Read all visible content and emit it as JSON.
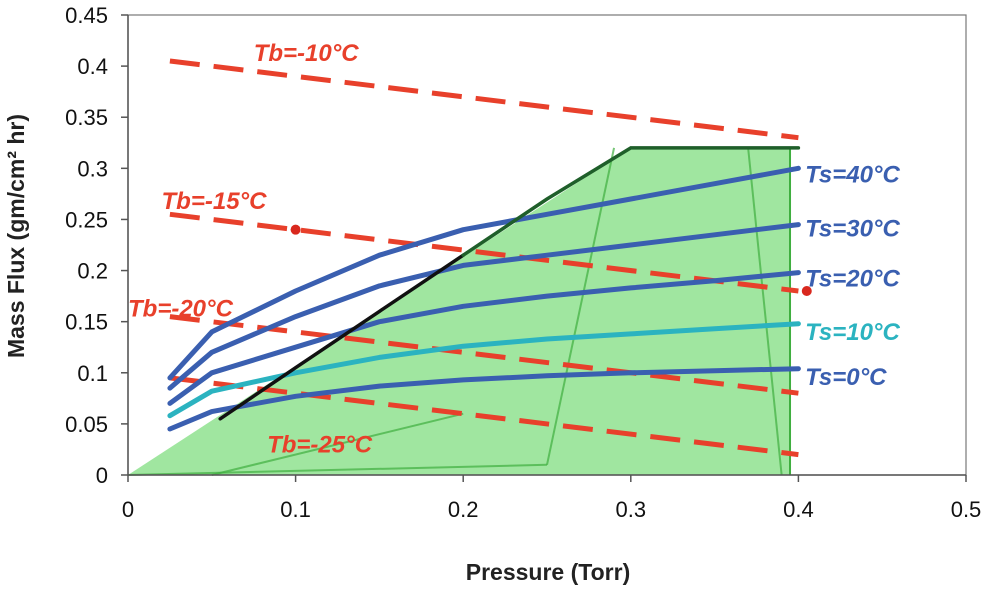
{
  "colors": {
    "ts": "#3a5fb0",
    "ts10": "#2bb3c0",
    "tb": "#e8402b",
    "region_fill": "#8fe28f",
    "region_edge": "#3fae3f",
    "boundary": "#111111",
    "plot_border": "#777777"
  },
  "chart_data": {
    "type": "line",
    "xlabel": "Pressure (Torr)",
    "ylabel": "Mass Flux (gm/cm² hr)",
    "xlim": [
      0,
      0.5
    ],
    "ylim": [
      0,
      0.45
    ],
    "xticks": [
      "0",
      "0.1",
      "0.2",
      "0.3",
      "0.4",
      "0.5"
    ],
    "yticks": [
      "0",
      "0.05",
      "0.1",
      "0.15",
      "0.2",
      "0.25",
      "0.3",
      "0.35",
      "0.4",
      "0.45"
    ],
    "grid": false,
    "shaded_region": {
      "vertices": [
        [
          0,
          0
        ],
        [
          0.3,
          0.32
        ],
        [
          0.395,
          0.32
        ],
        [
          0.395,
          0
        ],
        [
          0,
          0
        ]
      ]
    },
    "boundary_line": {
      "x": [
        0.055,
        0.1,
        0.15,
        0.2,
        0.25,
        0.3,
        0.4
      ],
      "y": [
        0.055,
        0.105,
        0.16,
        0.215,
        0.27,
        0.32,
        0.32
      ]
    },
    "ts_series": [
      {
        "label": "Ts=40°C",
        "x": [
          0.025,
          0.05,
          0.1,
          0.15,
          0.2,
          0.25,
          0.3,
          0.35,
          0.4
        ],
        "y": [
          0.095,
          0.14,
          0.18,
          0.215,
          0.24,
          0.255,
          0.27,
          0.285,
          0.3
        ]
      },
      {
        "label": "Ts=30°C",
        "x": [
          0.025,
          0.05,
          0.1,
          0.15,
          0.2,
          0.25,
          0.3,
          0.35,
          0.4
        ],
        "y": [
          0.085,
          0.12,
          0.155,
          0.185,
          0.205,
          0.215,
          0.225,
          0.235,
          0.245
        ]
      },
      {
        "label": "Ts=20°C",
        "x": [
          0.025,
          0.05,
          0.1,
          0.15,
          0.2,
          0.25,
          0.3,
          0.35,
          0.4
        ],
        "y": [
          0.07,
          0.1,
          0.125,
          0.15,
          0.165,
          0.175,
          0.183,
          0.19,
          0.198
        ]
      },
      {
        "label": "Ts=10°C",
        "x": [
          0.025,
          0.05,
          0.1,
          0.15,
          0.2,
          0.25,
          0.3,
          0.35,
          0.4
        ],
        "y": [
          0.058,
          0.082,
          0.1,
          0.115,
          0.126,
          0.133,
          0.138,
          0.143,
          0.148
        ]
      },
      {
        "label": "Ts=0°C",
        "x": [
          0.025,
          0.05,
          0.1,
          0.15,
          0.2,
          0.25,
          0.3,
          0.35,
          0.4
        ],
        "y": [
          0.045,
          0.062,
          0.077,
          0.087,
          0.093,
          0.097,
          0.1,
          0.102,
          0.104
        ]
      }
    ],
    "tb_series": [
      {
        "label": "Tb=-10°C",
        "x": [
          0.025,
          0.4
        ],
        "y": [
          0.405,
          0.33
        ]
      },
      {
        "label": "Tb=-15°C",
        "x": [
          0.025,
          0.4
        ],
        "y": [
          0.255,
          0.18
        ]
      },
      {
        "label": "Tb=-20°C",
        "x": [
          0.025,
          0.4
        ],
        "y": [
          0.155,
          0.08
        ]
      },
      {
        "label": "Tb=-25°C",
        "x": [
          0.025,
          0.4
        ],
        "y": [
          0.095,
          0.02
        ]
      }
    ],
    "markers": [
      {
        "x": 0.1,
        "y": 0.24
      },
      {
        "x": 0.405,
        "y": 0.18
      }
    ]
  }
}
